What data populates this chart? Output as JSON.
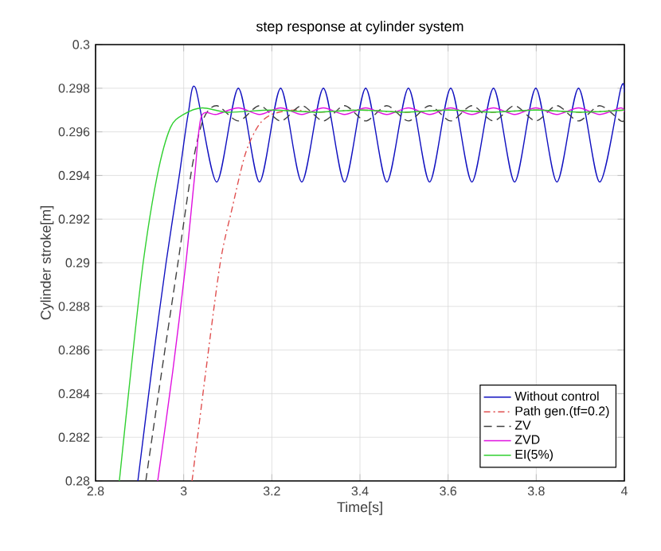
{
  "chart_data": {
    "type": "line",
    "title": "step response at cylinder system",
    "xlabel": "Time[s]",
    "ylabel": "Cylinder stroke[m]",
    "xlim": [
      2.8,
      4
    ],
    "ylim": [
      0.28,
      0.3
    ],
    "xticks": [
      2.8,
      3,
      3.2,
      3.4,
      3.6,
      3.8,
      4
    ],
    "yticks": [
      0.28,
      0.282,
      0.284,
      0.286,
      0.288,
      0.29,
      0.292,
      0.294,
      0.296,
      0.298,
      0.3
    ],
    "grid": true,
    "legend": "bottom right",
    "series": [
      {
        "name": "Without control",
        "color": "#1010c0",
        "line_style": "solid",
        "x": [
          2.896,
          2.93,
          2.96,
          2.99,
          3.01,
          3.027,
          3.075,
          3.124,
          3.172,
          3.22,
          3.268,
          3.317,
          3.365,
          3.413,
          3.461,
          3.51,
          3.558,
          3.606,
          3.654,
          3.703,
          3.751,
          3.799,
          3.847,
          3.896,
          3.944,
          3.992,
          4.0
        ],
        "values": [
          0.28,
          0.2855,
          0.29,
          0.294,
          0.2968,
          0.298,
          0.2937,
          0.298,
          0.2937,
          0.298,
          0.2937,
          0.298,
          0.2937,
          0.298,
          0.2937,
          0.298,
          0.2937,
          0.298,
          0.2937,
          0.298,
          0.2937,
          0.298,
          0.2937,
          0.298,
          0.2937,
          0.298,
          0.2978
        ]
      },
      {
        "name": "Path gen.(tf=0.2)",
        "color": "#e05050",
        "line_style": "dashdot",
        "x": [
          3.019,
          3.05,
          3.083,
          3.11,
          3.14,
          3.17,
          3.2,
          3.25,
          3.3,
          3.4,
          3.5,
          3.6,
          3.7,
          3.8,
          3.9,
          4.0
        ],
        "values": [
          0.28,
          0.285,
          0.29,
          0.2925,
          0.295,
          0.2963,
          0.2968,
          0.297,
          0.2969,
          0.297,
          0.2969,
          0.297,
          0.2969,
          0.297,
          0.2969,
          0.297
        ]
      },
      {
        "name": "ZV",
        "color": "#404040",
        "line_style": "dashed",
        "x": [
          2.914,
          2.95,
          2.987,
          3.02,
          3.045,
          3.075,
          3.124,
          3.172,
          3.22,
          3.268,
          3.317,
          3.365,
          3.413,
          3.461,
          3.51,
          3.558,
          3.606,
          3.654,
          3.703,
          3.751,
          3.799,
          3.847,
          3.896,
          3.944,
          3.992,
          4.0
        ],
        "values": [
          0.28,
          0.285,
          0.29,
          0.2945,
          0.2966,
          0.2972,
          0.2965,
          0.2972,
          0.2965,
          0.2972,
          0.2965,
          0.2972,
          0.2965,
          0.2972,
          0.2965,
          0.2972,
          0.2965,
          0.2972,
          0.2965,
          0.2972,
          0.2965,
          0.2972,
          0.2965,
          0.2972,
          0.2965,
          0.2966
        ]
      },
      {
        "name": "ZVD",
        "color": "#e010e0",
        "line_style": "solid",
        "x": [
          2.941,
          2.975,
          3.005,
          3.025,
          3.04,
          3.075,
          3.124,
          3.172,
          3.22,
          3.268,
          3.317,
          3.365,
          3.413,
          3.461,
          3.51,
          3.558,
          3.606,
          3.654,
          3.703,
          3.751,
          3.799,
          3.847,
          3.896,
          3.944,
          3.992,
          4.0
        ],
        "values": [
          0.28,
          0.285,
          0.29,
          0.294,
          0.2967,
          0.2968,
          0.2971,
          0.2968,
          0.2971,
          0.2968,
          0.2971,
          0.2968,
          0.2971,
          0.2968,
          0.2971,
          0.2968,
          0.2971,
          0.2968,
          0.2971,
          0.2968,
          0.2971,
          0.2968,
          0.2971,
          0.2968,
          0.2971,
          0.2969
        ]
      },
      {
        "name": "EI(5%)",
        "color": "#30d030",
        "line_style": "solid",
        "x": [
          2.854,
          2.88,
          2.908,
          2.94,
          2.97,
          3.0,
          3.042,
          3.1,
          3.2,
          3.3,
          3.4,
          3.5,
          3.6,
          3.7,
          3.8,
          3.9,
          4.0
        ],
        "values": [
          0.28,
          0.285,
          0.29,
          0.294,
          0.2962,
          0.2968,
          0.2971,
          0.2969,
          0.297,
          0.2969,
          0.297,
          0.2969,
          0.297,
          0.2969,
          0.297,
          0.2969,
          0.297
        ]
      }
    ]
  }
}
